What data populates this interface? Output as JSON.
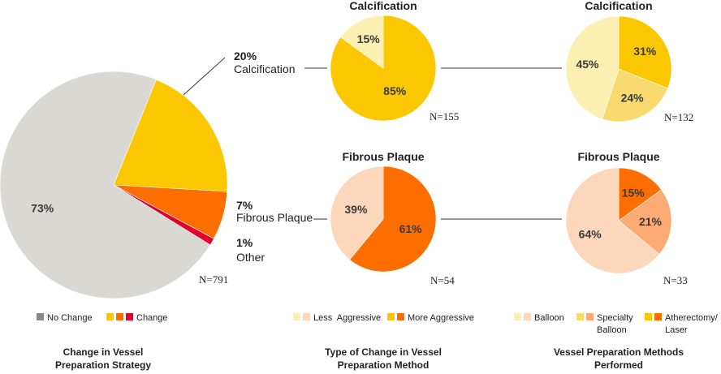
{
  "colors": {
    "grey": "#d9d8d3",
    "yellow_dark": "#fbc700",
    "yellow_light": "#fcefb2",
    "yellow_mid": "#f8da6e",
    "orange_dark": "#fd6e00",
    "orange_light": "#fcd7bb",
    "orange_mid": "#fdab75",
    "red": "#e3002b",
    "legend_grey": "#888888"
  },
  "chart_data": [
    {
      "type": "pie",
      "id": "overall",
      "n_label": "N=791",
      "slices": [
        {
          "label": "No Change",
          "value": 73,
          "text": "73%",
          "color": "grey"
        },
        {
          "label": "Calcification",
          "value": 20,
          "text": "20%",
          "color": "yellow_dark"
        },
        {
          "label": "Fibrous Plaque",
          "value": 7,
          "text": "7%",
          "color": "orange_dark"
        },
        {
          "label": "Other",
          "value": 1,
          "text": "1%",
          "color": "red"
        }
      ],
      "callouts": {
        "calcification": {
          "pct": "20%",
          "name": "Calcification"
        },
        "fibrous": {
          "pct": "7%",
          "name": "Fibrous Plaque"
        },
        "other": {
          "pct": "1%",
          "name": "Other"
        }
      }
    },
    {
      "type": "pie",
      "id": "calc_change",
      "title": "Calcification",
      "n_label": "N=155",
      "slices": [
        {
          "label": "More Aggressive",
          "value": 85,
          "text": "85%",
          "color": "yellow_dark"
        },
        {
          "label": "Less Aggressive",
          "value": 15,
          "text": "15%",
          "color": "yellow_light"
        }
      ]
    },
    {
      "type": "pie",
      "id": "calc_methods",
      "title": "Calcification",
      "n_label": "N=132",
      "slices": [
        {
          "label": "Atherectomy/Laser",
          "value": 31,
          "text": "31%",
          "color": "yellow_dark"
        },
        {
          "label": "Specialty Balloon",
          "value": 24,
          "text": "24%",
          "color": "yellow_mid"
        },
        {
          "label": "Balloon",
          "value": 45,
          "text": "45%",
          "color": "yellow_light"
        }
      ]
    },
    {
      "type": "pie",
      "id": "fib_change",
      "title": "Fibrous Plaque",
      "n_label": "N=54",
      "slices": [
        {
          "label": "More Aggressive",
          "value": 61,
          "text": "61%",
          "color": "orange_dark"
        },
        {
          "label": "Less Aggressive",
          "value": 39,
          "text": "39%",
          "color": "orange_light"
        }
      ]
    },
    {
      "type": "pie",
      "id": "fib_methods",
      "title": "Fibrous Plaque",
      "n_label": "N=33",
      "slices": [
        {
          "label": "Atherectomy/Laser",
          "value": 15,
          "text": "15%",
          "color": "orange_dark"
        },
        {
          "label": "Specialty Balloon",
          "value": 21,
          "text": "21%",
          "color": "orange_mid"
        },
        {
          "label": "Balloon",
          "value": 64,
          "text": "64%",
          "color": "orange_light"
        }
      ]
    }
  ],
  "legends": {
    "left": {
      "items": [
        {
          "label": "No Change",
          "swatches": [
            "legend_grey"
          ]
        },
        {
          "label": "Change",
          "swatches": [
            "yellow_dark",
            "orange_dark",
            "red"
          ]
        }
      ],
      "caption": [
        "Change in Vessel",
        "Preparation Strategy"
      ]
    },
    "middle": {
      "items": [
        {
          "label": "Less  Aggressive",
          "swatches": [
            "yellow_light",
            "orange_light"
          ]
        },
        {
          "label": "More Aggressive",
          "swatches": [
            "yellow_dark",
            "orange_dark"
          ]
        }
      ],
      "caption": [
        "Type of Change in Vessel",
        "Preparation Method"
      ]
    },
    "right": {
      "items": [
        {
          "label": "Balloon",
          "swatches": [
            "yellow_light",
            "orange_light"
          ]
        },
        {
          "label": "Specialty",
          "label2": "Balloon",
          "swatches": [
            "yellow_mid",
            "orange_mid"
          ]
        },
        {
          "label": "Atherectomy/",
          "label2": "Laser",
          "swatches": [
            "yellow_dark",
            "orange_dark"
          ]
        }
      ],
      "caption": [
        "Vessel Preparation Methods",
        "Performed"
      ]
    }
  }
}
